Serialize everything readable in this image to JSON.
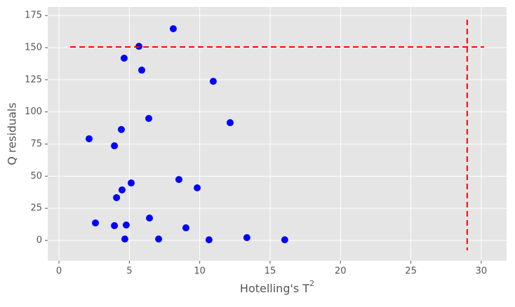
{
  "chart_data": {
    "type": "scatter",
    "xlabel": "Hotelling's T",
    "xlabel_sup": "2",
    "ylabel": "Q residuals",
    "xlim": [
      -0.8,
      31.8
    ],
    "ylim": [
      -15.8,
      181.6
    ],
    "xticks": [
      0,
      5,
      10,
      15,
      20,
      25,
      30
    ],
    "yticks": [
      0,
      25,
      50,
      75,
      100,
      125,
      150,
      175
    ],
    "grid": true,
    "color": "#0000ff",
    "x": [
      8.12,
      5.68,
      4.63,
      5.88,
      10.96,
      6.38,
      12.16,
      4.43,
      2.14,
      3.94,
      8.52,
      9.82,
      5.13,
      4.48,
      4.09,
      2.59,
      3.94,
      4.78,
      6.43,
      9.02,
      4.68,
      7.08,
      10.66,
      13.35,
      16.04
    ],
    "y": [
      164.7,
      151,
      141.8,
      132.5,
      123.8,
      94.9,
      91.6,
      86.3,
      79.1,
      73.6,
      47.4,
      40.9,
      44.7,
      39.3,
      33.3,
      13.6,
      11.5,
      12.0,
      17.4,
      9.8,
      1.1,
      1.1,
      0.5,
      2.2,
      0.5
    ],
    "limit_lines": [
      {
        "x": [
          0.8,
          30.2
        ],
        "y": [
          150.5,
          150.5
        ],
        "color": "#ff0000"
      },
      {
        "x": [
          29.0,
          29.0
        ],
        "y": [
          171.8,
          -7.6
        ],
        "color": "#ff0000"
      }
    ]
  }
}
